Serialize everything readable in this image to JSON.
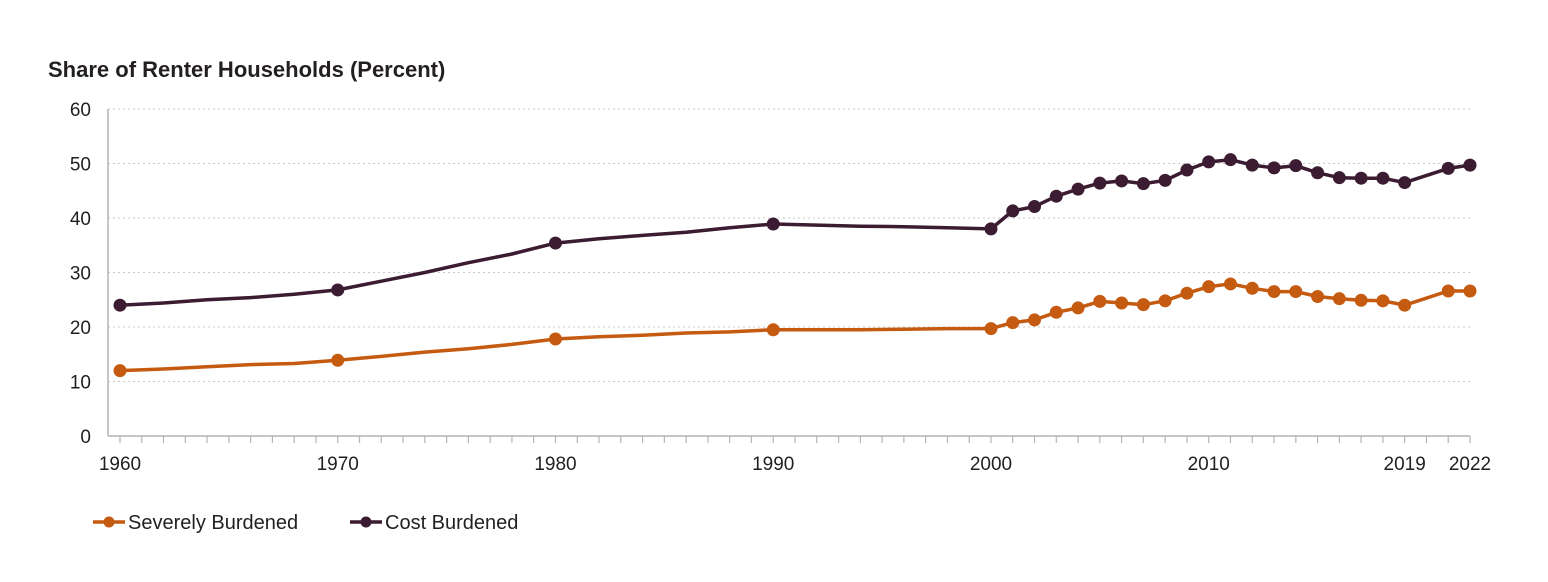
{
  "chart_data": {
    "type": "line",
    "title": "Share of Renter Households (Percent)",
    "xlabel": "",
    "ylabel": "",
    "xlim": [
      1960,
      2022
    ],
    "ylim": [
      0,
      60
    ],
    "yticks": [
      "0",
      "10",
      "20",
      "30",
      "40",
      "50",
      "60"
    ],
    "xticks": [
      "1960",
      "1970",
      "1980",
      "1990",
      "2000",
      "2010",
      "2019",
      "2022"
    ],
    "grid": "horizontal-dotted",
    "legend_position": "bottom-left",
    "colors": {
      "severely_burdened": "#c55a11",
      "cost_burdened": "#3b1c32"
    },
    "series": [
      {
        "name": "Severely Burdened",
        "color": "#c55a11",
        "line": [
          [
            1960,
            12.0
          ],
          [
            1962,
            12.3
          ],
          [
            1964,
            12.7
          ],
          [
            1966,
            13.1
          ],
          [
            1968,
            13.3
          ],
          [
            1970,
            13.9
          ],
          [
            1972,
            14.6
          ],
          [
            1974,
            15.4
          ],
          [
            1976,
            16.0
          ],
          [
            1978,
            16.8
          ],
          [
            1980,
            17.8
          ],
          [
            1982,
            18.2
          ],
          [
            1984,
            18.5
          ],
          [
            1986,
            18.9
          ],
          [
            1988,
            19.1
          ],
          [
            1990,
            19.5
          ],
          [
            1992,
            19.5
          ],
          [
            1994,
            19.5
          ],
          [
            1996,
            19.6
          ],
          [
            1998,
            19.7
          ],
          [
            2000,
            19.7
          ],
          [
            2001,
            20.8
          ],
          [
            2002,
            21.3
          ],
          [
            2003,
            22.7
          ],
          [
            2004,
            23.5
          ],
          [
            2005,
            24.7
          ],
          [
            2006,
            24.4
          ],
          [
            2007,
            24.1
          ],
          [
            2008,
            24.8
          ],
          [
            2009,
            26.2
          ],
          [
            2010,
            27.4
          ],
          [
            2011,
            27.9
          ],
          [
            2012,
            27.1
          ],
          [
            2013,
            26.5
          ],
          [
            2014,
            26.5
          ],
          [
            2015,
            25.6
          ],
          [
            2016,
            25.2
          ],
          [
            2017,
            24.9
          ],
          [
            2018,
            24.8
          ],
          [
            2019,
            24.0
          ],
          [
            2021,
            26.6
          ],
          [
            2022,
            26.6
          ]
        ],
        "markers": [
          [
            1960,
            12.0
          ],
          [
            1970,
            13.9
          ],
          [
            1980,
            17.8
          ],
          [
            1990,
            19.5
          ],
          [
            2000,
            19.7
          ],
          [
            2001,
            20.8
          ],
          [
            2002,
            21.3
          ],
          [
            2003,
            22.7
          ],
          [
            2004,
            23.5
          ],
          [
            2005,
            24.7
          ],
          [
            2006,
            24.4
          ],
          [
            2007,
            24.1
          ],
          [
            2008,
            24.8
          ],
          [
            2009,
            26.2
          ],
          [
            2010,
            27.4
          ],
          [
            2011,
            27.9
          ],
          [
            2012,
            27.1
          ],
          [
            2013,
            26.5
          ],
          [
            2014,
            26.5
          ],
          [
            2015,
            25.6
          ],
          [
            2016,
            25.2
          ],
          [
            2017,
            24.9
          ],
          [
            2018,
            24.8
          ],
          [
            2019,
            24.0
          ],
          [
            2021,
            26.6
          ],
          [
            2022,
            26.6
          ]
        ]
      },
      {
        "name": "Cost Burdened",
        "color": "#3b1c32",
        "line": [
          [
            1960,
            24.0
          ],
          [
            1962,
            24.4
          ],
          [
            1964,
            25.0
          ],
          [
            1966,
            25.4
          ],
          [
            1968,
            26.0
          ],
          [
            1970,
            26.8
          ],
          [
            1972,
            28.4
          ],
          [
            1974,
            30.0
          ],
          [
            1976,
            31.8
          ],
          [
            1978,
            33.4
          ],
          [
            1980,
            35.4
          ],
          [
            1982,
            36.2
          ],
          [
            1984,
            36.8
          ],
          [
            1986,
            37.4
          ],
          [
            1988,
            38.2
          ],
          [
            1990,
            38.9
          ],
          [
            1992,
            38.7
          ],
          [
            1994,
            38.5
          ],
          [
            1996,
            38.4
          ],
          [
            1998,
            38.2
          ],
          [
            2000,
            38.0
          ],
          [
            2001,
            41.3
          ],
          [
            2002,
            42.1
          ],
          [
            2003,
            44.0
          ],
          [
            2004,
            45.3
          ],
          [
            2005,
            46.4
          ],
          [
            2006,
            46.8
          ],
          [
            2007,
            46.3
          ],
          [
            2008,
            46.9
          ],
          [
            2009,
            48.8
          ],
          [
            2010,
            50.3
          ],
          [
            2011,
            50.7
          ],
          [
            2012,
            49.7
          ],
          [
            2013,
            49.2
          ],
          [
            2014,
            49.6
          ],
          [
            2015,
            48.3
          ],
          [
            2016,
            47.4
          ],
          [
            2017,
            47.3
          ],
          [
            2018,
            47.3
          ],
          [
            2019,
            46.5
          ],
          [
            2021,
            49.1
          ],
          [
            2022,
            49.7
          ]
        ],
        "markers": [
          [
            1960,
            24.0
          ],
          [
            1970,
            26.8
          ],
          [
            1980,
            35.4
          ],
          [
            1990,
            38.9
          ],
          [
            2000,
            38.0
          ],
          [
            2001,
            41.3
          ],
          [
            2002,
            42.1
          ],
          [
            2003,
            44.0
          ],
          [
            2004,
            45.3
          ],
          [
            2005,
            46.4
          ],
          [
            2006,
            46.8
          ],
          [
            2007,
            46.3
          ],
          [
            2008,
            46.9
          ],
          [
            2009,
            48.8
          ],
          [
            2010,
            50.3
          ],
          [
            2011,
            50.7
          ],
          [
            2012,
            49.7
          ],
          [
            2013,
            49.2
          ],
          [
            2014,
            49.6
          ],
          [
            2015,
            48.3
          ],
          [
            2016,
            47.4
          ],
          [
            2017,
            47.3
          ],
          [
            2018,
            47.3
          ],
          [
            2019,
            46.5
          ],
          [
            2021,
            49.1
          ],
          [
            2022,
            49.7
          ]
        ]
      }
    ]
  }
}
